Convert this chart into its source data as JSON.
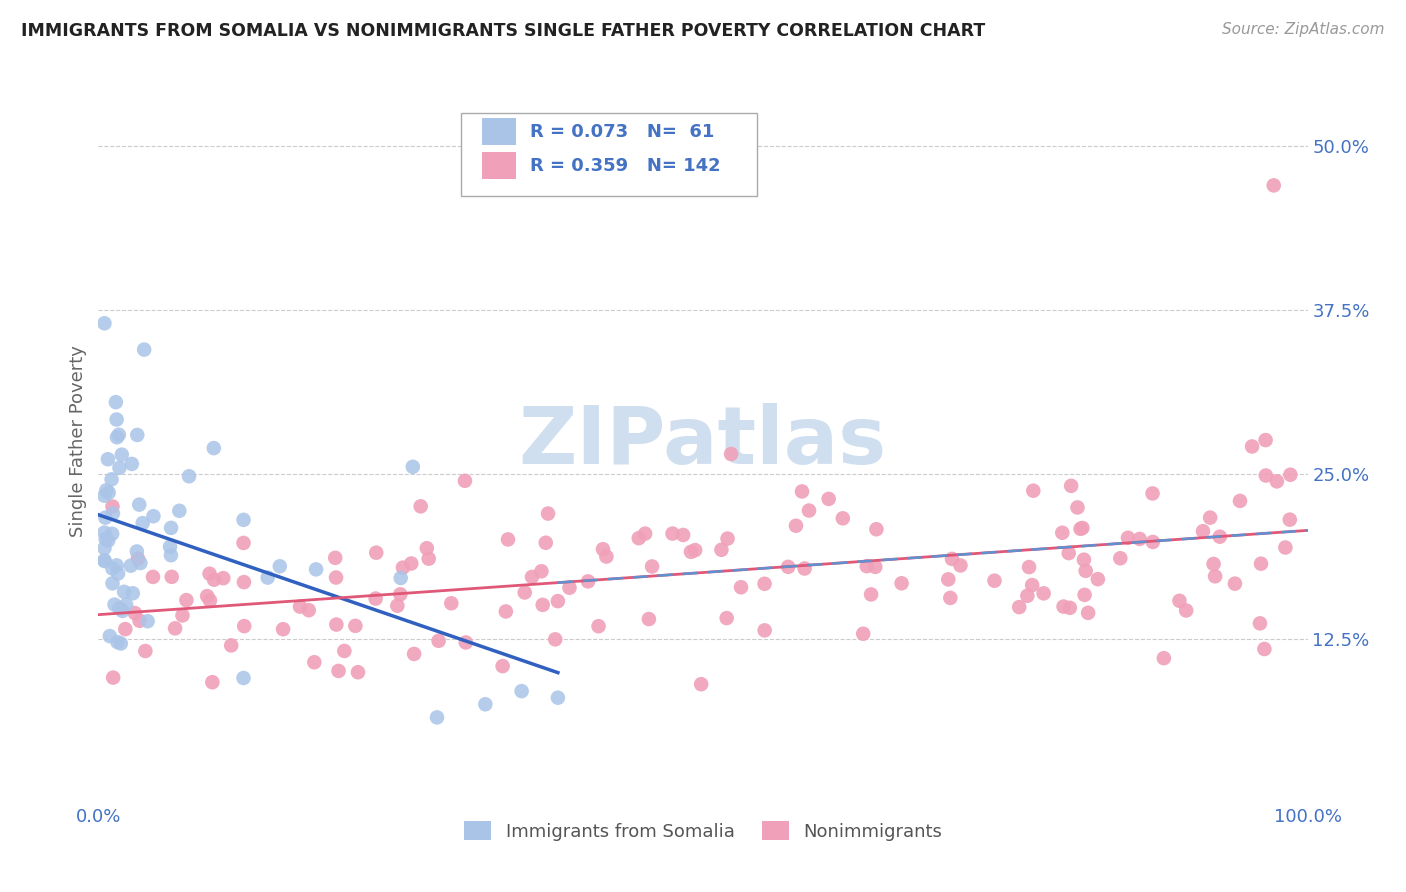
{
  "title": "IMMIGRANTS FROM SOMALIA VS NONIMMIGRANTS SINGLE FATHER POVERTY CORRELATION CHART",
  "source": "Source: ZipAtlas.com",
  "ylabel": "Single Father Poverty",
  "legend_labels": [
    "Immigrants from Somalia",
    "Nonimmigrants"
  ],
  "r_somalia": 0.073,
  "n_somalia": 61,
  "r_nonimm": 0.359,
  "n_nonimm": 142,
  "color_somalia": "#aac4e8",
  "color_nonimm": "#f0a0b8",
  "line_color_somalia": "#3060c0",
  "line_color_nonimm": "#e05878",
  "dash_line_color": "#6090d0",
  "legend_text_color": "#4472c4",
  "watermark_color": "#d0dff0",
  "background_color": "#ffffff",
  "xlim": [
    0,
    1.0
  ],
  "ylim": [
    0,
    0.55
  ],
  "y_tick_values_right": [
    0.125,
    0.25,
    0.375,
    0.5
  ],
  "y_tick_labels_right": [
    "12.5%",
    "25.0%",
    "37.5%",
    "50.0%"
  ]
}
